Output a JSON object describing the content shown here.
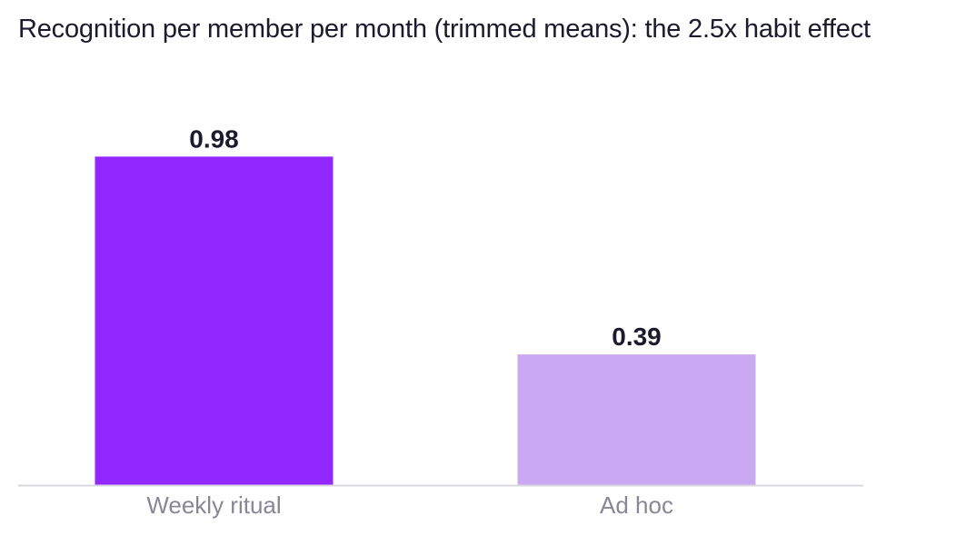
{
  "chart_data": {
    "type": "bar",
    "title": "Recognition per member per month (trimmed means): the 2.5x habit effect",
    "categories": [
      "Weekly ritual",
      "Ad hoc"
    ],
    "values": [
      0.98,
      0.39
    ],
    "value_labels": [
      "0.98",
      "0.39"
    ],
    "bar_colors": [
      "#9327ff",
      "#caa8f2"
    ],
    "axis_color": "#d9d8de",
    "ylim": [
      0,
      1.0
    ],
    "grid": false,
    "legend": "none",
    "xlabel": "",
    "ylabel": ""
  }
}
